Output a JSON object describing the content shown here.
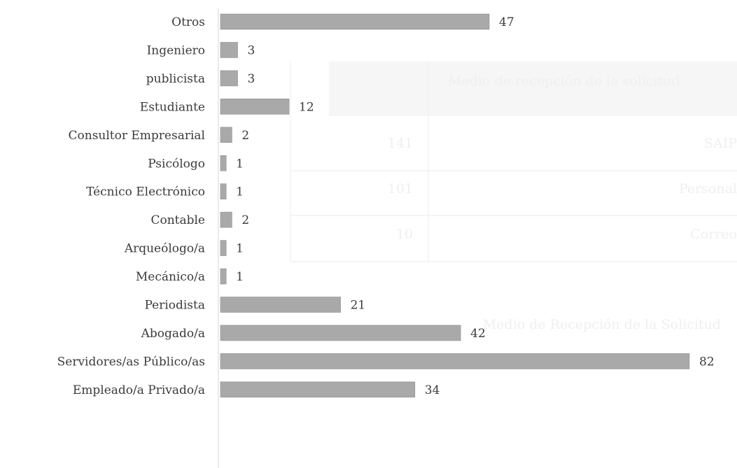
{
  "chart_data": {
    "type": "bar",
    "orientation": "horizontal",
    "categories": [
      "Otros",
      "Ingeniero",
      "publicista",
      "Estudiante",
      "Consultor Empresarial",
      "Psicólogo",
      "Técnico Electrónico",
      "Contable",
      "Arqueólogo/a",
      "Mecánico/a",
      "Periodista",
      "Abogado/a",
      "Servidores/as Público/as",
      "Empleado/a Privado/a"
    ],
    "values": [
      47,
      3,
      3,
      12,
      2,
      1,
      1,
      2,
      1,
      1,
      21,
      42,
      82,
      34
    ],
    "xlim": [
      0,
      82
    ],
    "grid": false,
    "colors": {
      "bar_fill": "#a9a9a9",
      "bar_stroke": "#8f8f8f",
      "text": "#3b3b3b",
      "bleed_through": "#efefef"
    }
  },
  "bleed_through": {
    "table_header": "Medio de recepción de la solicitud",
    "table_rows": [
      "SAIP",
      "Personal",
      "Correo"
    ],
    "table_values": [
      "141",
      "101",
      "10"
    ],
    "subtitle": "Medio de Recepción de la Solicitud"
  }
}
